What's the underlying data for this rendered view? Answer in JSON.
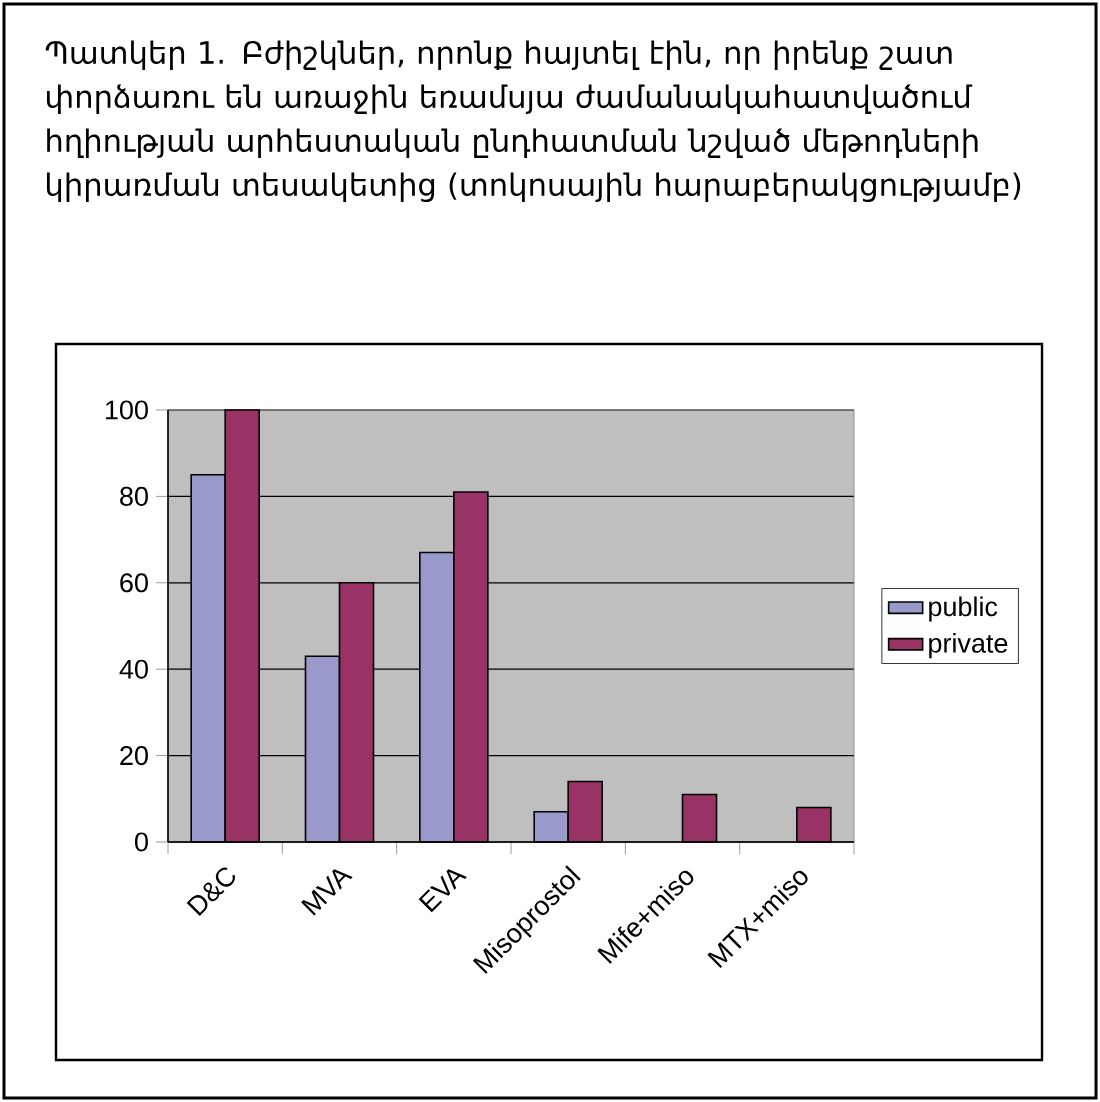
{
  "chart_data": {
    "type": "bar",
    "title": "Պատկեր 1. Բժիշկներ, որոնք հայտել էին, որ իրենք շատ փորձառու են առաջին եռամսյա ժամանակահատվածում հղիության արհեստական ընդհատման նշված մեթոդների կիրառման տեսակետից  (տոկոսային հարաբերակցությամբ)",
    "categories": [
      "D&C",
      "MVA",
      "EVA",
      "Misoprostol",
      "Mife+miso",
      "MTX+miso"
    ],
    "series": [
      {
        "name": "public",
        "color": "#9999cc",
        "values": [
          85,
          43,
          67,
          7,
          null,
          null
        ]
      },
      {
        "name": "private",
        "color": "#993366",
        "values": [
          100,
          60,
          81,
          14,
          11,
          8
        ]
      }
    ],
    "ylim": [
      0,
      100
    ],
    "yticks": [
      0,
      20,
      40,
      60,
      80,
      100
    ],
    "grid": "y",
    "legend": "right"
  }
}
